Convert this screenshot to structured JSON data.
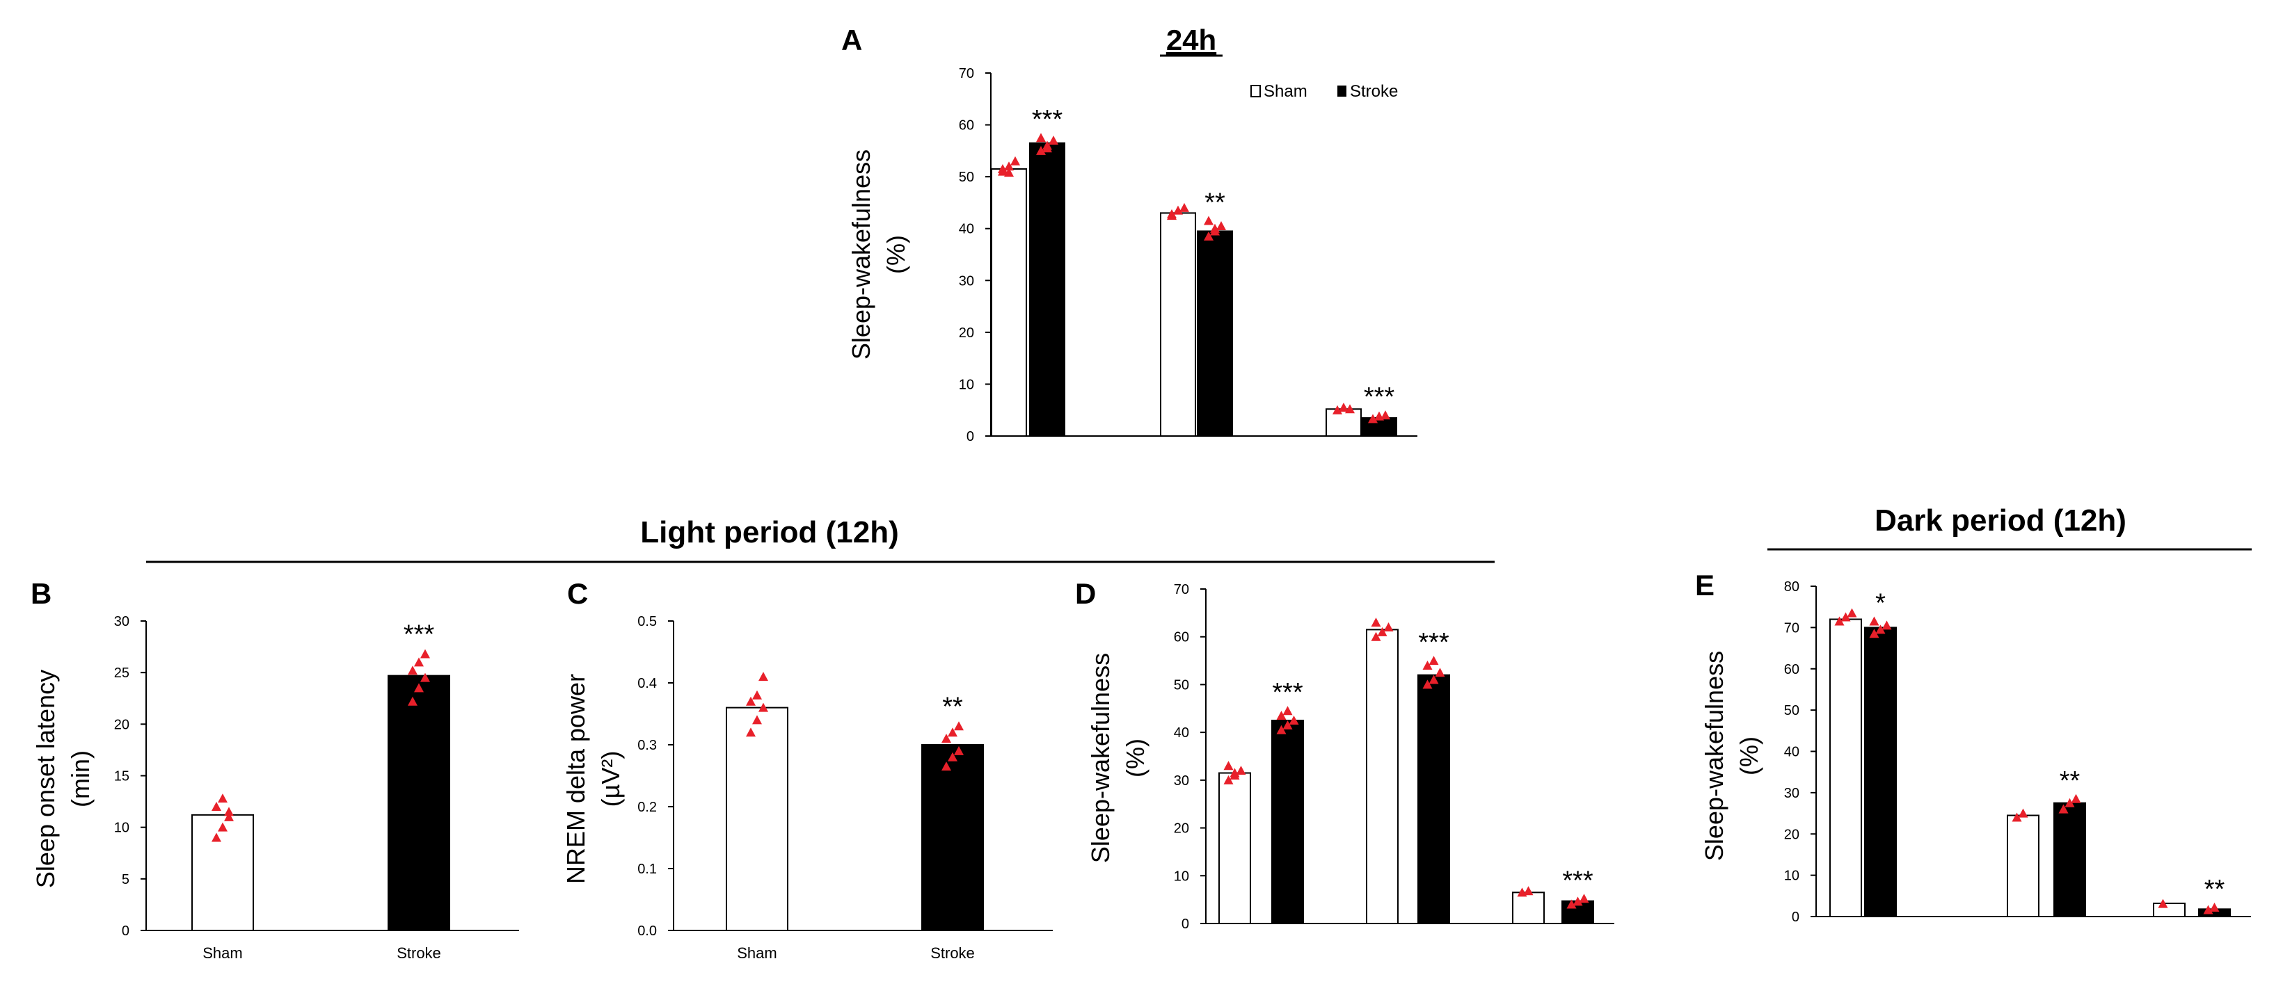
{
  "colors": {
    "sham": "#ffffff",
    "stroke": "#000000",
    "points": "#e8202a",
    "axis": "#000000"
  },
  "headers": {
    "light": "Light period (12h)",
    "dark": "Dark period (12h)"
  },
  "legend": {
    "sham": "Sham",
    "stroke": "Stroke"
  },
  "chart_data": [
    {
      "id": "A",
      "type": "bar",
      "panel_label": "A",
      "title": "24h",
      "ylabel": [
        "Sleep-wakefulness",
        "(%)"
      ],
      "ylim": [
        0,
        70
      ],
      "yticks": [
        "0",
        "10",
        "20",
        "30",
        "40",
        "50",
        "60",
        "70"
      ],
      "categories": [
        "",
        "",
        ""
      ],
      "series": [
        {
          "name": "Sham",
          "values": [
            51.5,
            43,
            5.2
          ]
        },
        {
          "name": "Stroke",
          "values": [
            56.5,
            39.5,
            3.5
          ]
        }
      ],
      "points": [
        [
          [
            51,
            52,
            53,
            51.5,
            50.8
          ],
          [
            55,
            56,
            57,
            57.5,
            55.5
          ]
        ],
        [
          [
            42.5,
            43.5,
            44,
            42.8
          ],
          [
            38.5,
            39.5,
            40.5,
            41.5,
            40
          ]
        ],
        [
          [
            5,
            5.5,
            5.2
          ],
          [
            3.3,
            3.8,
            4
          ]
        ]
      ],
      "significance": [
        "***",
        "**",
        "***"
      ]
    },
    {
      "id": "B",
      "type": "bar",
      "panel_label": "B",
      "ylabel": [
        "Sleep onset latency",
        "(min)"
      ],
      "ylim": [
        0,
        30
      ],
      "yticks": [
        "0",
        "5",
        "10",
        "15",
        "20",
        "25",
        "30"
      ],
      "categories": [
        "Sham",
        "Stroke"
      ],
      "values": [
        11.2,
        24.7
      ],
      "points": [
        [
          9,
          10,
          11,
          12,
          12.8,
          11.5
        ],
        [
          22.2,
          23.5,
          24.5,
          25.2,
          26,
          26.8
        ]
      ],
      "significance": [
        "",
        "***"
      ]
    },
    {
      "id": "C",
      "type": "bar",
      "panel_label": "C",
      "ylabel": [
        "NREM delta power",
        "(µV²)"
      ],
      "ylim": [
        0,
        0.5
      ],
      "yticks": [
        "0.0",
        "0.1",
        "0.2",
        "0.3",
        "0.4",
        "0.5"
      ],
      "categories": [
        "Sham",
        "Stroke"
      ],
      "values": [
        0.36,
        0.3
      ],
      "points": [
        [
          0.32,
          0.34,
          0.36,
          0.37,
          0.38,
          0.41
        ],
        [
          0.265,
          0.28,
          0.29,
          0.31,
          0.32,
          0.33
        ]
      ],
      "significance": [
        "",
        "**"
      ]
    },
    {
      "id": "D",
      "type": "bar",
      "panel_label": "D",
      "ylabel": [
        "Sleep-wakefulness",
        "(%)"
      ],
      "ylim": [
        0,
        70
      ],
      "yticks": [
        "0",
        "10",
        "20",
        "30",
        "40",
        "50",
        "60",
        "70"
      ],
      "categories": [
        "",
        "",
        ""
      ],
      "series": [
        {
          "name": "Sham",
          "values": [
            31.5,
            61.5,
            6.5
          ]
        },
        {
          "name": "Stroke",
          "values": [
            42.5,
            52,
            4.7
          ]
        }
      ],
      "points": [
        [
          [
            30,
            31,
            32,
            33,
            31.5
          ],
          [
            40.5,
            41.5,
            42.5,
            43.5,
            44.5
          ]
        ],
        [
          [
            60,
            61,
            62,
            63
          ],
          [
            50,
            51,
            52.5,
            54,
            55
          ]
        ],
        [
          [
            6.5,
            6.8
          ],
          [
            4,
            4.6,
            5.2
          ]
        ]
      ],
      "significance": [
        "***",
        "***",
        "***"
      ]
    },
    {
      "id": "E",
      "type": "bar",
      "panel_label": "E",
      "ylabel": [
        "Sleep-wakefulness",
        "(%)"
      ],
      "ylim": [
        0,
        80
      ],
      "yticks": [
        "0",
        "10",
        "20",
        "30",
        "40",
        "50",
        "60",
        "70",
        "80"
      ],
      "categories": [
        "",
        "",
        ""
      ],
      "series": [
        {
          "name": "Sham",
          "values": [
            72,
            24.5,
            3.2
          ]
        },
        {
          "name": "Stroke",
          "values": [
            70,
            27.5,
            1.8
          ]
        }
      ],
      "points": [
        [
          [
            71.5,
            72.5,
            73.5
          ],
          [
            68.5,
            69.5,
            70.5,
            71.5
          ]
        ],
        [
          [
            24,
            25
          ],
          [
            26,
            27.5,
            28.5
          ]
        ],
        [
          [
            3.1
          ],
          [
            1.6,
            2.2
          ]
        ]
      ],
      "significance": [
        "*",
        "**",
        "**"
      ]
    }
  ]
}
